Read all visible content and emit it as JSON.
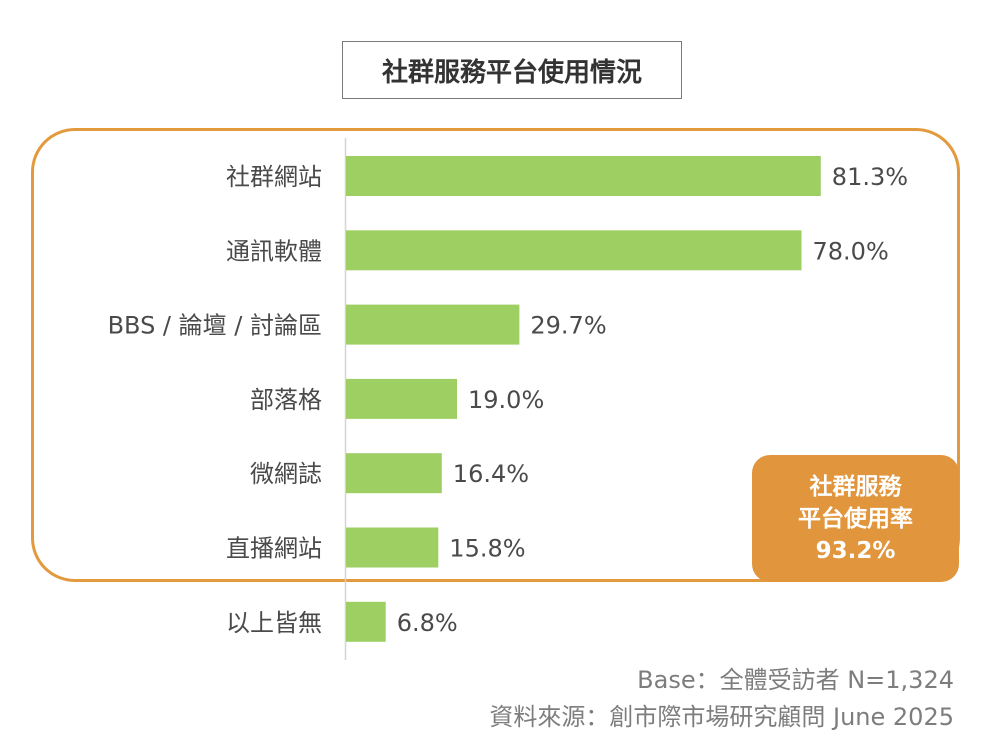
{
  "title": "社群服務平台使用情況",
  "callout": {
    "line1": "社群服務",
    "line2": "平台使用率",
    "value": "93.2%"
  },
  "footnotes": {
    "base": "Base：全體受訪者 N=1,324",
    "source": "資料來源：創市際市場研究顧問 June 2025"
  },
  "colors": {
    "bar": "#9ecf63",
    "highlight": "#e29a3c",
    "callout_fill": "#e1953c"
  },
  "chart_data": {
    "type": "bar",
    "orientation": "horizontal",
    "title": "社群服務平台使用情況",
    "categories": [
      "社群網站",
      "通訊軟體",
      "BBS / 論壇 / 討論區",
      "部落格",
      "微網誌",
      "直播網站",
      "以上皆無"
    ],
    "values": [
      81.3,
      78.0,
      29.7,
      19.0,
      16.4,
      15.8,
      6.8
    ],
    "value_labels": [
      "81.3%",
      "78.0%",
      "29.7%",
      "19.0%",
      "16.4%",
      "15.8%",
      "6.8%"
    ],
    "unit": "%",
    "xlim": [
      0,
      100
    ],
    "grid": false,
    "legend": "none"
  }
}
